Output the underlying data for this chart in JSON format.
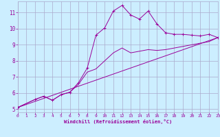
{
  "bg_color": "#cceeff",
  "line_color": "#990099",
  "grid_color": "#aaaacc",
  "xlabel": "Windchill (Refroidissement éolien,°C)",
  "xlim": [
    0,
    23
  ],
  "ylim": [
    4.8,
    11.7
  ],
  "yticks": [
    5,
    6,
    7,
    8,
    9,
    10,
    11
  ],
  "xticks": [
    0,
    1,
    2,
    3,
    4,
    5,
    6,
    7,
    8,
    9,
    10,
    11,
    12,
    13,
    14,
    15,
    16,
    17,
    18,
    19,
    20,
    21,
    22,
    23
  ],
  "curve1_x": [
    0,
    2,
    3,
    4,
    5,
    6,
    7,
    8,
    9,
    10,
    11,
    12,
    13,
    14,
    15,
    16,
    17,
    18,
    19,
    20,
    21,
    22,
    23
  ],
  "curve1_y": [
    5.1,
    5.6,
    5.8,
    5.55,
    5.9,
    6.05,
    6.65,
    7.55,
    9.6,
    10.05,
    11.1,
    11.45,
    10.85,
    10.6,
    11.1,
    10.3,
    9.75,
    9.65,
    9.65,
    9.6,
    9.55,
    9.65,
    9.45
  ],
  "curve2_x": [
    0,
    2,
    3,
    4,
    5,
    6,
    7,
    8,
    9,
    10,
    11,
    12,
    13,
    14,
    15,
    16,
    17,
    18,
    19,
    20,
    21,
    22,
    23
  ],
  "curve2_y": [
    5.1,
    5.6,
    5.8,
    5.55,
    5.9,
    6.05,
    6.55,
    7.3,
    7.5,
    8.0,
    8.5,
    8.8,
    8.5,
    8.6,
    8.7,
    8.65,
    8.7,
    8.8,
    8.9,
    9.0,
    9.1,
    9.2,
    9.45
  ],
  "curve3_x": [
    0,
    23
  ],
  "curve3_y": [
    5.1,
    9.45
  ]
}
